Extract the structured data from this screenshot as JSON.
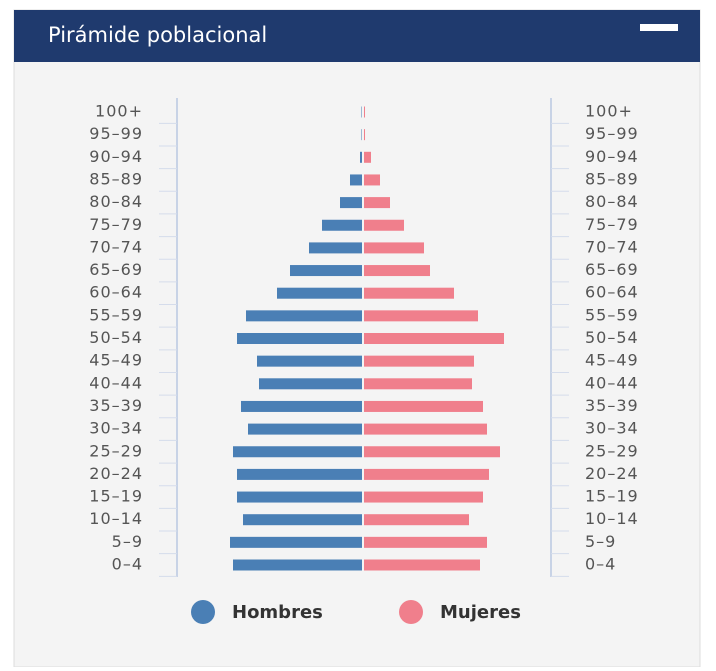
{
  "header": {
    "title": "Pirámide poblacional"
  },
  "chart_data": {
    "type": "pyramid",
    "categories": [
      "100+",
      "95–99",
      "90–94",
      "85–89",
      "80–84",
      "75–79",
      "70–74",
      "65–69",
      "60–64",
      "55–59",
      "50–54",
      "45–49",
      "40–44",
      "35–39",
      "30–34",
      "25–29",
      "20–24",
      "15–19",
      "10–14",
      "5–9",
      "0–4"
    ],
    "series": [
      {
        "name": "Hombres",
        "color": "#4a7fb5",
        "values": [
          0.5,
          0.5,
          2,
          12,
          22,
          40,
          53,
          72,
          85,
          116,
          125,
          105,
          103,
          121,
          114,
          129,
          125,
          125,
          119,
          132,
          129
        ]
      },
      {
        "name": "Mujeres",
        "color": "#f07f8c",
        "values": [
          1,
          1,
          7,
          16,
          26,
          40,
          60,
          66,
          90,
          114,
          140,
          110,
          108,
          119,
          123,
          136,
          125,
          119,
          105,
          123,
          116
        ]
      }
    ]
  }
}
